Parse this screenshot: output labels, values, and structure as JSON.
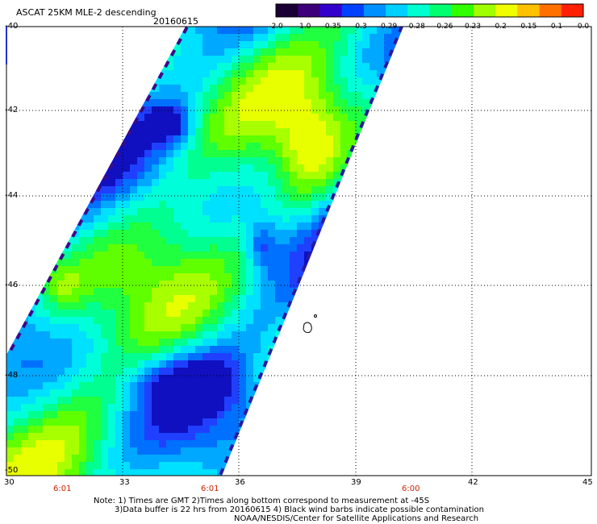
{
  "title": "ASCAT 25KM MLE-2 descending",
  "date": "20160615",
  "colorbar": {
    "ticks": [
      "-2.0",
      "-1.0",
      "-0.35",
      "-0.3",
      "-0.29",
      "-0.28",
      "-0.26",
      "-0.23",
      "-0.2",
      "-0.15",
      "-0.1",
      "0.0"
    ],
    "colors": [
      "#1a0033",
      "#3d007a",
      "#3300cc",
      "#0040ff",
      "#0090ff",
      "#00d0ff",
      "#00ffd0",
      "#00ff70",
      "#30ff00",
      "#a0ff00",
      "#f0ff00",
      "#ffc000",
      "#ff7000",
      "#ff2000"
    ]
  },
  "axes": {
    "lon_labels": [
      "30",
      "33",
      "36",
      "39",
      "42",
      "45"
    ],
    "lat_labels": [
      "-40",
      "-42",
      "-44",
      "-46",
      "-48",
      "-50"
    ]
  },
  "time_labels": [
    "6:01",
    "6:01",
    "6:00"
  ],
  "notes": {
    "line1": "Note: 1) Times are GMT 2)Times along bottom correspond to measurement at -45S",
    "line2": "3)Data buffer is 22 hrs from 20160615 4) Black wind barbs indicate possible contamination",
    "line3": "NOAA/NESDIS/Center for Satellite Applications and Research"
  }
}
